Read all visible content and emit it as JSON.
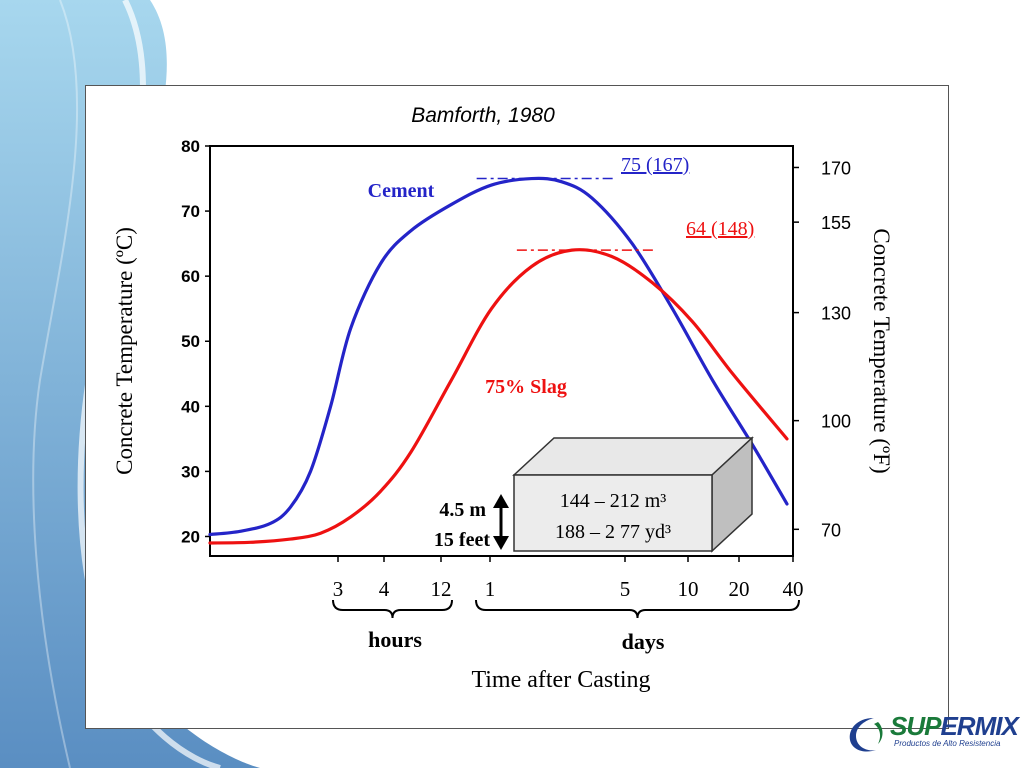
{
  "chart_data": {
    "type": "line",
    "title": "Bamforth, 1980",
    "xlabel": "Time after Casting",
    "ylabel_left": "Concrete Temperature (ºC)",
    "ylabel_right": "Concrete Temperature (ºF)",
    "ylim": [
      17,
      80
    ],
    "y_ticks_left": [
      20,
      30,
      40,
      50,
      60,
      70,
      80
    ],
    "y_ticks_right": [
      {
        "label": "170",
        "c": 76.7
      },
      {
        "label": "155",
        "c": 68.3
      },
      {
        "label": "130",
        "c": 54.4
      },
      {
        "label": "100",
        "c": 37.8
      },
      {
        "label": "70",
        "c": 21.1
      }
    ],
    "x_ticks": [
      "3",
      "4",
      "12",
      "1",
      "5",
      "10",
      "20",
      "40"
    ],
    "x_groups": [
      "hours",
      "days"
    ],
    "series": [
      {
        "name": "Cement",
        "color": "#2424c8",
        "points": [
          [
            0,
            20.3
          ],
          [
            0.15,
            20.8
          ],
          [
            0.3,
            22.0
          ],
          [
            0.4,
            24.5
          ],
          [
            0.5,
            30.0
          ],
          [
            0.6,
            40.0
          ],
          [
            0.7,
            52.0
          ],
          [
            0.85,
            62.0
          ],
          [
            1.0,
            67.0
          ],
          [
            1.2,
            71.0
          ],
          [
            1.4,
            74.0
          ],
          [
            1.6,
            75.0
          ],
          [
            1.75,
            74.5
          ],
          [
            1.9,
            72.0
          ],
          [
            2.1,
            65.0
          ],
          [
            2.3,
            55.0
          ],
          [
            2.5,
            44.0
          ],
          [
            2.7,
            34.0
          ],
          [
            2.87,
            25.0
          ]
        ],
        "annotation": "75 (167)",
        "peak": [
          1.6,
          75.0
        ]
      },
      {
        "name": "75% Slag",
        "color": "#ee1111",
        "points": [
          [
            0,
            19.0
          ],
          [
            0.2,
            19.1
          ],
          [
            0.4,
            19.6
          ],
          [
            0.55,
            20.5
          ],
          [
            0.7,
            23.0
          ],
          [
            0.85,
            27.0
          ],
          [
            1.0,
            33.0
          ],
          [
            1.2,
            44.0
          ],
          [
            1.4,
            55.0
          ],
          [
            1.6,
            61.5
          ],
          [
            1.8,
            64.0
          ],
          [
            2.0,
            63.0
          ],
          [
            2.2,
            59.0
          ],
          [
            2.4,
            53.0
          ],
          [
            2.6,
            45.0
          ],
          [
            2.87,
            35.0
          ]
        ],
        "annotation": "64 (148)",
        "peak": [
          1.8,
          64.0
        ]
      }
    ],
    "inset": {
      "box_line1": "144 – 212 m³",
      "box_line2": "188 – 2 77 yd³",
      "height_m": "4.5 m",
      "height_ft": "15 feet"
    }
  },
  "logo": {
    "word_a": "SUP",
    "word_b": "ERMIX",
    "tagline": "Productos de Alto Resistencia"
  }
}
